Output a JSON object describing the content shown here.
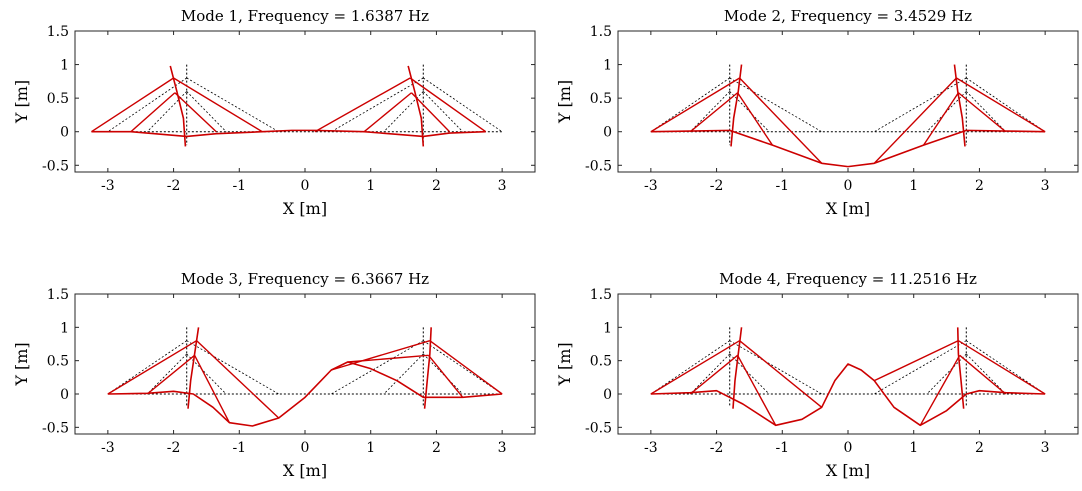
{
  "figure": {
    "xlabel": "X [m]",
    "ylabel": "Y [m]"
  },
  "chart_data": [
    {
      "type": "line",
      "title": "Mode 1, Frequency = 1.6387 Hz",
      "xlabel": "X [m]",
      "ylabel": "Y [m]",
      "xlim": [
        -3.5,
        3.5
      ],
      "ylim": [
        -0.6,
        1.5
      ],
      "xticks": [
        "-3",
        "-2",
        "-1",
        "0",
        "1",
        "2",
        "3"
      ],
      "yticks": [
        "-0.5",
        "0",
        "0.5",
        "1",
        "1.5"
      ],
      "grid": false,
      "colors": {
        "undeformed": "#000000",
        "deformed": "#cc0000"
      },
      "undeformed": {
        "pylons": [
          [
            -1.8,
            1.0,
            -1.8,
            -0.2
          ],
          [
            1.8,
            1.0,
            1.8,
            -0.2
          ]
        ],
        "cables": [
          [
            -1.8,
            0.8,
            -3.0,
            0.0
          ],
          [
            -1.8,
            0.6,
            -2.4,
            0.0
          ],
          [
            -1.8,
            0.8,
            -0.4,
            0.0
          ],
          [
            -1.8,
            0.6,
            -1.2,
            0.0
          ],
          [
            1.8,
            0.8,
            3.0,
            0.0
          ],
          [
            1.8,
            0.6,
            2.4,
            0.0
          ],
          [
            1.8,
            0.8,
            0.4,
            0.0
          ],
          [
            1.8,
            0.6,
            1.2,
            0.0
          ]
        ],
        "deck": [
          [
            -3.0,
            0.0
          ],
          [
            3.0,
            0.0
          ]
        ]
      },
      "deformed": {
        "pylons": [
          [
            [
              -2.05,
              0.98
            ],
            [
              -1.95,
              0.6
            ],
            [
              -1.85,
              0.2
            ],
            [
              -1.82,
              -0.22
            ]
          ],
          [
            [
              1.57,
              0.98
            ],
            [
              1.67,
              0.6
            ],
            [
              1.77,
              0.2
            ],
            [
              1.8,
              -0.22
            ]
          ]
        ],
        "cables": [
          [
            -2.0,
            0.8,
            -3.25,
            0.0
          ],
          [
            -1.98,
            0.58,
            -2.65,
            0.0
          ],
          [
            -2.0,
            0.8,
            -0.65,
            0.0
          ],
          [
            -1.98,
            0.58,
            -1.35,
            0.0
          ],
          [
            1.6,
            0.8,
            2.75,
            0.0
          ],
          [
            1.62,
            0.58,
            2.2,
            0.0
          ],
          [
            1.6,
            0.8,
            0.15,
            0.0
          ],
          [
            1.62,
            0.58,
            0.9,
            0.0
          ]
        ],
        "deck": [
          [
            -3.25,
            0.0
          ],
          [
            -2.65,
            0.0
          ],
          [
            -1.8,
            -0.07
          ],
          [
            -1.35,
            -0.03
          ],
          [
            -0.65,
            0.0
          ],
          [
            -0.2,
            0.02
          ],
          [
            0.15,
            0.02
          ],
          [
            0.9,
            0.0
          ],
          [
            1.8,
            -0.07
          ],
          [
            2.2,
            -0.02
          ],
          [
            2.75,
            0.0
          ]
        ]
      }
    },
    {
      "type": "line",
      "title": "Mode 2, Frequency = 3.4529 Hz",
      "xlabel": "X [m]",
      "ylabel": "Y [m]",
      "xlim": [
        -3.5,
        3.5
      ],
      "ylim": [
        -0.6,
        1.5
      ],
      "xticks": [
        "-3",
        "-2",
        "-1",
        "0",
        "1",
        "2",
        "3"
      ],
      "yticks": [
        "-0.5",
        "0",
        "0.5",
        "1",
        "1.5"
      ],
      "grid": false,
      "colors": {
        "undeformed": "#000000",
        "deformed": "#cc0000"
      },
      "undeformed": {
        "pylons": [
          [
            -1.8,
            1.0,
            -1.8,
            -0.2
          ],
          [
            1.8,
            1.0,
            1.8,
            -0.2
          ]
        ],
        "cables": [
          [
            -1.8,
            0.8,
            -3.0,
            0.0
          ],
          [
            -1.8,
            0.6,
            -2.4,
            0.0
          ],
          [
            -1.8,
            0.8,
            -0.4,
            0.0
          ],
          [
            -1.8,
            0.6,
            -1.2,
            0.0
          ],
          [
            1.8,
            0.8,
            3.0,
            0.0
          ],
          [
            1.8,
            0.6,
            2.4,
            0.0
          ],
          [
            1.8,
            0.8,
            0.4,
            0.0
          ],
          [
            1.8,
            0.6,
            1.2,
            0.0
          ]
        ],
        "deck": [
          [
            -3.0,
            0.0
          ],
          [
            3.0,
            0.0
          ]
        ]
      },
      "deformed": {
        "pylons": [
          [
            [
              -1.62,
              1.0
            ],
            [
              -1.67,
              0.6
            ],
            [
              -1.74,
              0.2
            ],
            [
              -1.78,
              -0.22
            ]
          ],
          [
            [
              1.62,
              1.0
            ],
            [
              1.67,
              0.6
            ],
            [
              1.74,
              0.2
            ],
            [
              1.78,
              -0.22
            ]
          ]
        ],
        "cables": [
          [
            -1.65,
            0.8,
            -3.0,
            0.0
          ],
          [
            -1.68,
            0.58,
            -2.4,
            0.0
          ],
          [
            -1.65,
            0.8,
            -0.4,
            -0.47
          ],
          [
            -1.68,
            0.58,
            -1.15,
            -0.2
          ],
          [
            1.65,
            0.8,
            3.0,
            0.0
          ],
          [
            1.68,
            0.58,
            2.4,
            0.0
          ],
          [
            1.65,
            0.8,
            0.4,
            -0.47
          ],
          [
            1.68,
            0.58,
            1.15,
            -0.2
          ]
        ],
        "deck": [
          [
            -3.0,
            0.0
          ],
          [
            -2.4,
            0.01
          ],
          [
            -1.8,
            0.02
          ],
          [
            -1.15,
            -0.2
          ],
          [
            -0.4,
            -0.47
          ],
          [
            0.0,
            -0.52
          ],
          [
            0.4,
            -0.47
          ],
          [
            1.15,
            -0.2
          ],
          [
            1.8,
            0.02
          ],
          [
            2.4,
            0.01
          ],
          [
            3.0,
            0.0
          ]
        ]
      }
    },
    {
      "type": "line",
      "title": "Mode 3, Frequency = 6.3667 Hz",
      "xlabel": "X [m]",
      "ylabel": "Y [m]",
      "xlim": [
        -3.5,
        3.5
      ],
      "ylim": [
        -0.6,
        1.5
      ],
      "xticks": [
        "-3",
        "-2",
        "-1",
        "0",
        "1",
        "2",
        "3"
      ],
      "yticks": [
        "-0.5",
        "0",
        "0.5",
        "1",
        "1.5"
      ],
      "grid": false,
      "colors": {
        "undeformed": "#000000",
        "deformed": "#cc0000"
      },
      "undeformed": {
        "pylons": [
          [
            -1.8,
            1.0,
            -1.8,
            -0.2
          ],
          [
            1.8,
            1.0,
            1.8,
            -0.2
          ]
        ],
        "cables": [
          [
            -1.8,
            0.8,
            -3.0,
            0.0
          ],
          [
            -1.8,
            0.6,
            -2.4,
            0.0
          ],
          [
            -1.8,
            0.8,
            -0.4,
            0.0
          ],
          [
            -1.8,
            0.6,
            -1.2,
            0.0
          ],
          [
            1.8,
            0.8,
            3.0,
            0.0
          ],
          [
            1.8,
            0.6,
            2.4,
            0.0
          ],
          [
            1.8,
            0.8,
            0.4,
            0.0
          ],
          [
            1.8,
            0.6,
            1.2,
            0.0
          ]
        ],
        "deck": [
          [
            -3.0,
            0.0
          ],
          [
            3.0,
            0.0
          ]
        ]
      },
      "deformed": {
        "pylons": [
          [
            [
              -1.62,
              1.0
            ],
            [
              -1.68,
              0.6
            ],
            [
              -1.74,
              0.2
            ],
            [
              -1.78,
              -0.22
            ]
          ],
          [
            [
              1.92,
              1.0
            ],
            [
              1.9,
              0.6
            ],
            [
              1.86,
              0.2
            ],
            [
              1.82,
              -0.22
            ]
          ]
        ],
        "cables": [
          [
            -1.65,
            0.8,
            -3.0,
            0.0
          ],
          [
            -1.68,
            0.58,
            -2.4,
            0.0
          ],
          [
            -1.65,
            0.8,
            -0.4,
            -0.36
          ],
          [
            -1.68,
            0.58,
            -1.15,
            -0.43
          ],
          [
            1.9,
            0.8,
            3.0,
            0.0
          ],
          [
            1.88,
            0.58,
            2.4,
            -0.05
          ],
          [
            1.9,
            0.8,
            0.4,
            0.36
          ],
          [
            1.88,
            0.58,
            0.65,
            0.48
          ]
        ],
        "deck": [
          [
            -3.0,
            0.0
          ],
          [
            -2.4,
            0.01
          ],
          [
            -2.0,
            0.04
          ],
          [
            -1.7,
            0.0
          ],
          [
            -1.4,
            -0.2
          ],
          [
            -1.15,
            -0.43
          ],
          [
            -0.8,
            -0.48
          ],
          [
            -0.4,
            -0.36
          ],
          [
            0.0,
            -0.05
          ],
          [
            0.4,
            0.36
          ],
          [
            0.65,
            0.48
          ],
          [
            1.0,
            0.38
          ],
          [
            1.4,
            0.2
          ],
          [
            1.8,
            -0.05
          ],
          [
            2.4,
            -0.05
          ],
          [
            3.0,
            0.0
          ]
        ]
      }
    },
    {
      "type": "line",
      "title": "Mode 4, Frequency = 11.2516 Hz",
      "xlabel": "X [m]",
      "ylabel": "Y [m]",
      "xlim": [
        -3.5,
        3.5
      ],
      "ylim": [
        -0.6,
        1.5
      ],
      "xticks": [
        "-3",
        "-2",
        "-1",
        "0",
        "1",
        "2",
        "3"
      ],
      "yticks": [
        "-0.5",
        "0",
        "0.5",
        "1",
        "1.5"
      ],
      "grid": false,
      "colors": {
        "undeformed": "#000000",
        "deformed": "#cc0000"
      },
      "undeformed": {
        "pylons": [
          [
            -1.8,
            1.0,
            -1.8,
            -0.2
          ],
          [
            1.8,
            1.0,
            1.8,
            -0.2
          ]
        ],
        "cables": [
          [
            -1.8,
            0.8,
            -3.0,
            0.0
          ],
          [
            -1.8,
            0.6,
            -2.4,
            0.0
          ],
          [
            -1.8,
            0.8,
            -0.4,
            0.0
          ],
          [
            -1.8,
            0.6,
            -1.2,
            0.0
          ],
          [
            1.8,
            0.8,
            3.0,
            0.0
          ],
          [
            1.8,
            0.6,
            2.4,
            0.0
          ],
          [
            1.8,
            0.8,
            0.4,
            0.0
          ],
          [
            1.8,
            0.6,
            1.2,
            0.0
          ]
        ],
        "deck": [
          [
            -3.0,
            0.0
          ],
          [
            3.0,
            0.0
          ]
        ]
      },
      "deformed": {
        "pylons": [
          [
            [
              -1.62,
              1.0
            ],
            [
              -1.67,
              0.6
            ],
            [
              -1.72,
              0.2
            ],
            [
              -1.75,
              -0.22
            ]
          ],
          [
            [
              1.67,
              1.0
            ],
            [
              1.68,
              0.6
            ],
            [
              1.72,
              0.2
            ],
            [
              1.76,
              -0.22
            ]
          ]
        ],
        "cables": [
          [
            -1.65,
            0.8,
            -3.0,
            0.0
          ],
          [
            -1.68,
            0.58,
            -2.4,
            0.0
          ],
          [
            -1.65,
            0.8,
            -0.4,
            -0.2
          ],
          [
            -1.68,
            0.58,
            -1.1,
            -0.47
          ],
          [
            1.68,
            0.8,
            3.0,
            0.0
          ],
          [
            1.7,
            0.58,
            2.4,
            0.0
          ],
          [
            1.68,
            0.8,
            0.4,
            0.2
          ],
          [
            1.7,
            0.58,
            1.1,
            -0.47
          ]
        ],
        "deck": [
          [
            -3.0,
            0.0
          ],
          [
            -2.4,
            0.02
          ],
          [
            -2.0,
            0.05
          ],
          [
            -1.6,
            -0.15
          ],
          [
            -1.1,
            -0.47
          ],
          [
            -0.7,
            -0.38
          ],
          [
            -0.4,
            -0.2
          ],
          [
            -0.2,
            0.2
          ],
          [
            0.0,
            0.45
          ],
          [
            0.2,
            0.36
          ],
          [
            0.4,
            0.2
          ],
          [
            0.7,
            -0.2
          ],
          [
            1.1,
            -0.47
          ],
          [
            1.5,
            -0.25
          ],
          [
            1.8,
            0.0
          ],
          [
            2.0,
            0.05
          ],
          [
            2.4,
            0.02
          ],
          [
            3.0,
            0.0
          ]
        ]
      }
    }
  ]
}
